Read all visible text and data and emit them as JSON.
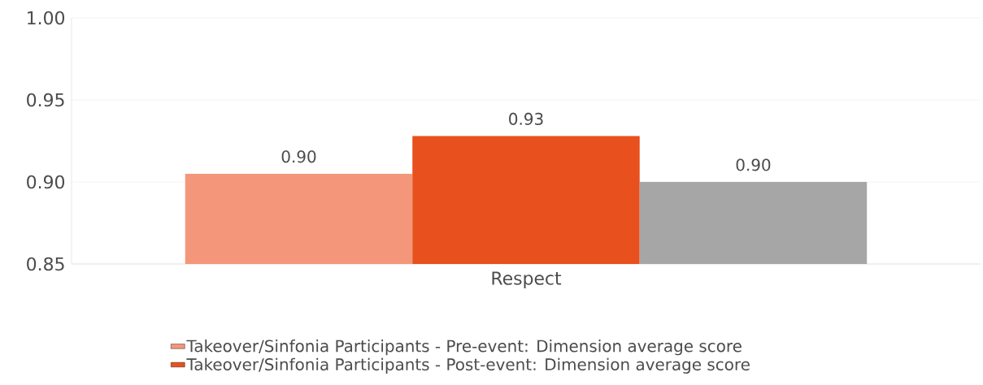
{
  "chart_data": {
    "type": "bar",
    "categories": [
      "Respect"
    ],
    "series": [
      {
        "name": "Takeover/Sinfonia Participants - Pre-event: Dimension average score",
        "color": "#f4967a",
        "values": [
          0.905
        ],
        "value_labels": [
          "0.90"
        ]
      },
      {
        "name": "Takeover/Sinfonia Participants - Post-event: Dimension average score",
        "color": "#e8501e",
        "values": [
          0.928
        ],
        "value_labels": [
          "0.93"
        ]
      },
      {
        "color": "#a6a6a6",
        "values": [
          0.9
        ],
        "value_labels": [
          "0.90"
        ]
      }
    ],
    "ylim": [
      0.85,
      1.0
    ],
    "yticks": [
      0.85,
      {
        "value": 0.9,
        "label": "0.90"
      },
      0.95,
      {
        "value": 1.0,
        "label": "1.00"
      }
    ],
    "grid": "y",
    "legend": "bottom"
  }
}
